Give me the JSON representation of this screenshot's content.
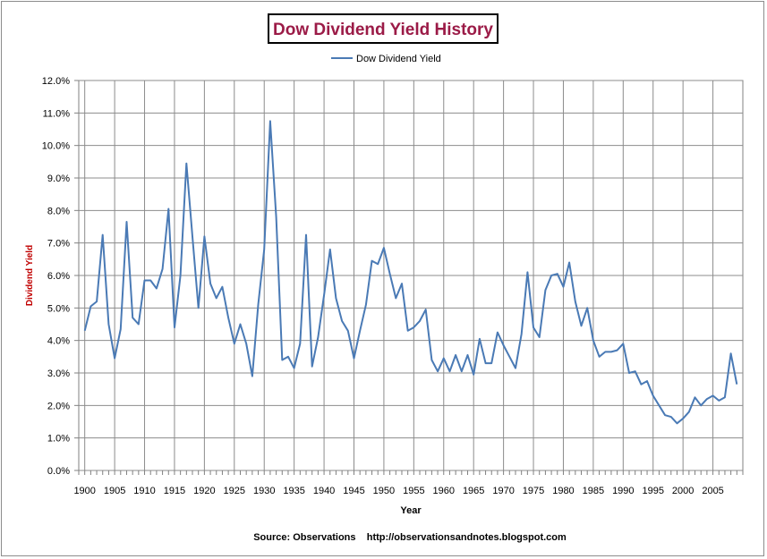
{
  "chart_data": {
    "type": "line",
    "title": "Dow Dividend Yield History",
    "xlabel": "Year",
    "ylabel": "Dividend Yield",
    "source": "Source: Observations    http://observationsandnotes.blogspot.com",
    "legend": {
      "position": "top-center"
    },
    "grid": true,
    "xlim": [
      1899,
      2010
    ],
    "ylim": [
      0,
      12
    ],
    "x_ticks": [
      "1900",
      "1905",
      "1910",
      "1915",
      "1920",
      "1925",
      "1930",
      "1935",
      "1940",
      "1945",
      "1950",
      "1955",
      "1960",
      "1965",
      "1970",
      "1975",
      "1980",
      "1985",
      "1990",
      "1995",
      "2000",
      "2005"
    ],
    "y_ticks": [
      "0.0%",
      "1.0%",
      "2.0%",
      "3.0%",
      "4.0%",
      "5.0%",
      "6.0%",
      "7.0%",
      "8.0%",
      "9.0%",
      "10.0%",
      "11.0%",
      "12.0%"
    ],
    "x": [
      1900,
      1901,
      1902,
      1903,
      1904,
      1905,
      1906,
      1907,
      1908,
      1909,
      1910,
      1911,
      1912,
      1913,
      1914,
      1915,
      1916,
      1917,
      1918,
      1919,
      1920,
      1921,
      1922,
      1923,
      1924,
      1925,
      1926,
      1927,
      1928,
      1929,
      1930,
      1931,
      1932,
      1933,
      1934,
      1935,
      1936,
      1937,
      1938,
      1939,
      1940,
      1941,
      1942,
      1943,
      1944,
      1945,
      1946,
      1947,
      1948,
      1949,
      1950,
      1951,
      1952,
      1953,
      1954,
      1955,
      1956,
      1957,
      1958,
      1959,
      1960,
      1961,
      1962,
      1963,
      1964,
      1965,
      1966,
      1967,
      1968,
      1969,
      1970,
      1971,
      1972,
      1973,
      1974,
      1975,
      1976,
      1977,
      1978,
      1979,
      1980,
      1981,
      1982,
      1983,
      1984,
      1985,
      1986,
      1987,
      1988,
      1989,
      1990,
      1991,
      1992,
      1993,
      1994,
      1995,
      1996,
      1997,
      1998,
      1999,
      2000,
      2001,
      2002,
      2003,
      2004,
      2005,
      2006,
      2007,
      2008,
      2009
    ],
    "series": [
      {
        "name": "Dow Dividend Yield",
        "color": "#4a7ab5",
        "values": [
          4.3,
          5.05,
          5.2,
          7.25,
          4.5,
          3.45,
          4.35,
          7.65,
          4.7,
          4.5,
          5.85,
          5.85,
          5.6,
          6.2,
          8.05,
          4.4,
          6.0,
          9.45,
          7.2,
          5.0,
          7.2,
          5.75,
          5.3,
          5.65,
          4.7,
          3.9,
          4.5,
          3.9,
          2.9,
          5.1,
          6.8,
          10.75,
          7.8,
          3.4,
          3.5,
          3.15,
          3.9,
          7.25,
          3.2,
          4.1,
          5.4,
          6.8,
          5.3,
          4.6,
          4.3,
          3.45,
          4.3,
          5.1,
          6.45,
          6.35,
          6.85,
          6.05,
          5.3,
          5.75,
          4.3,
          4.4,
          4.6,
          4.95,
          3.4,
          3.05,
          3.45,
          3.05,
          3.55,
          3.05,
          3.55,
          2.95,
          4.05,
          3.3,
          3.3,
          4.25,
          3.85,
          3.5,
          3.15,
          4.2,
          6.1,
          4.4,
          4.1,
          5.55,
          6.0,
          6.05,
          5.65,
          6.4,
          5.2,
          4.45,
          5.0,
          4.0,
          3.5,
          3.65,
          3.65,
          3.7,
          3.9,
          3.0,
          3.05,
          2.65,
          2.75,
          2.3,
          2.0,
          1.7,
          1.65,
          1.45,
          1.6,
          1.8,
          2.25,
          2.0,
          2.2,
          2.3,
          2.15,
          2.25,
          3.6,
          2.65
        ]
      }
    ]
  }
}
